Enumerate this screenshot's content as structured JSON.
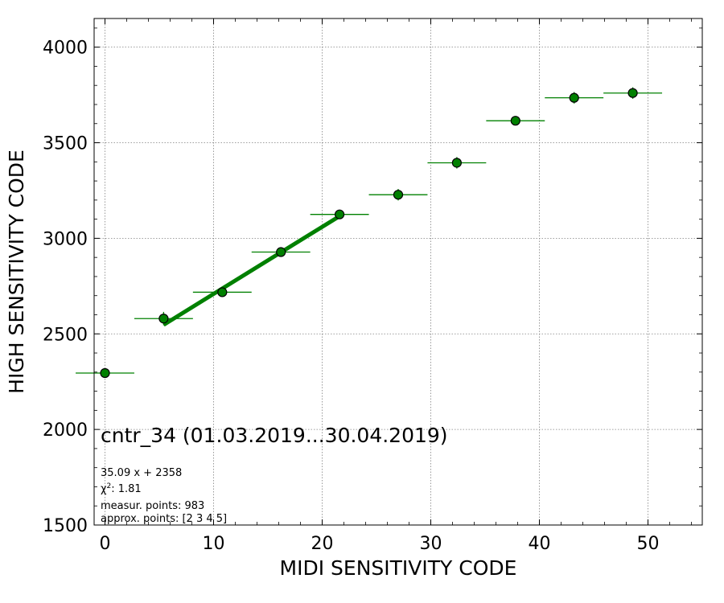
{
  "chart_data": {
    "type": "scatter",
    "title": "cntr_34 (01.03.2019...30.04.2019)",
    "xlabel": "MIDI SENSITIVITY CODE",
    "ylabel": "HIGH SENSITIVITY CODE",
    "xlim": [
      -1,
      55
    ],
    "ylim": [
      1500,
      4150
    ],
    "xticks": [
      0,
      10,
      20,
      30,
      40,
      50
    ],
    "yticks": [
      1500,
      2000,
      2500,
      3000,
      3500,
      4000
    ],
    "grid": true,
    "colors": {
      "points": "#008000",
      "errorbars": "#008000",
      "fit": "#008000",
      "marker_edge": "#000000"
    },
    "points": [
      {
        "x": 0.0,
        "y": 2295,
        "xerr": 2.7,
        "yerr": 10
      },
      {
        "x": 5.4,
        "y": 2580,
        "xerr": 2.7,
        "yerr": 35
      },
      {
        "x": 10.8,
        "y": 2718,
        "xerr": 2.7,
        "yerr": 20
      },
      {
        "x": 16.2,
        "y": 2928,
        "xerr": 2.7,
        "yerr": 25
      },
      {
        "x": 21.6,
        "y": 3125,
        "xerr": 2.7,
        "yerr": 15
      },
      {
        "x": 27.0,
        "y": 3228,
        "xerr": 2.7,
        "yerr": 30
      },
      {
        "x": 32.4,
        "y": 3395,
        "xerr": 2.7,
        "yerr": 30
      },
      {
        "x": 37.8,
        "y": 3615,
        "xerr": 2.7,
        "yerr": 10
      },
      {
        "x": 43.2,
        "y": 3735,
        "xerr": 2.7,
        "yerr": 30
      },
      {
        "x": 48.6,
        "y": 3760,
        "xerr": 2.7,
        "yerr": 30
      }
    ],
    "fit": {
      "slope": 35.09,
      "intercept": 2358,
      "x_range": [
        5.4,
        21.6
      ]
    },
    "annotations": {
      "equation": "35.09 x + 2358",
      "chi2_prefix": "χ",
      "chi2_sup": "2",
      "chi2_value": ": 1.81",
      "measur_points": "measur. points: 983",
      "approx_points": "approx. points: [2 3 4 5]"
    }
  }
}
